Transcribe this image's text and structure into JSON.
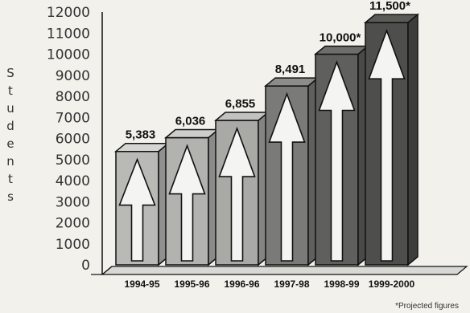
{
  "chart_data": {
    "type": "bar",
    "categories": [
      "1994-95",
      "1995-96",
      "1996-96",
      "1997-98",
      "1998-99",
      "1999-2000"
    ],
    "values": [
      5383,
      6036,
      6855,
      8491,
      10000,
      11500
    ],
    "value_labels": [
      "5,383",
      "6,036",
      "6,855",
      "8,491",
      "10,000*",
      "11,500*"
    ],
    "projected": [
      false,
      false,
      false,
      false,
      true,
      true
    ],
    "ylabel": "Students",
    "ylim": [
      0,
      12000
    ],
    "yticks": [
      0,
      1000,
      2000,
      3000,
      4000,
      5000,
      6000,
      7000,
      8000,
      9000,
      10000,
      11000,
      12000
    ],
    "ytick_labels": [
      "0",
      "1000",
      "2000",
      "3000",
      "4000",
      "5000",
      "6000",
      "7000",
      "8000",
      "9000",
      "10000",
      "11000",
      "12000"
    ],
    "grid": false,
    "style": "3d-bars-with-arrows",
    "bar_colors": [
      "#b9b9b6",
      "#b2b2af",
      "#a9a9a6",
      "#7a7a78",
      "#5f5f5d",
      "#4e4e4c"
    ],
    "footnote": "*Projected figures"
  }
}
